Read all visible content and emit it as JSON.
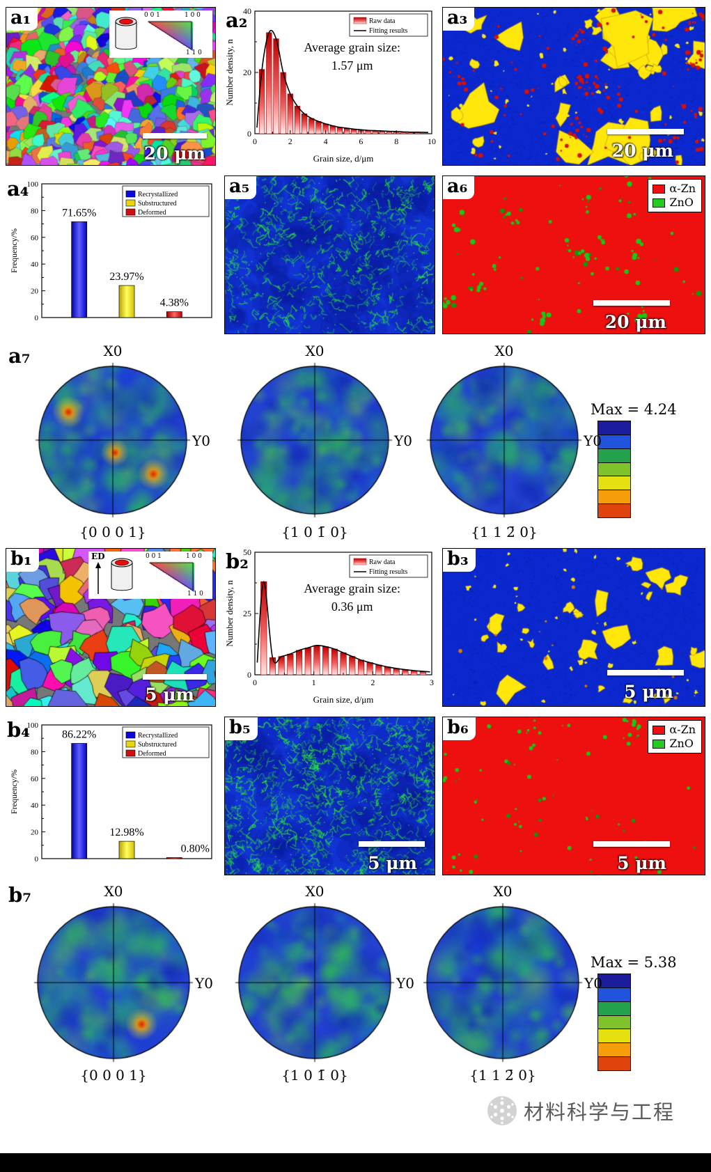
{
  "figure": {
    "watermark": "材料科学与工程"
  },
  "colorbar": {
    "colors": [
      "#1b1d9c",
      "#2153dc",
      "#23a14d",
      "#7fc22b",
      "#e5e00f",
      "#f59d0b",
      "#e0440e"
    ]
  },
  "panels": {
    "a1": {
      "label": "a₁",
      "scalebar": "20 μm",
      "key": {
        "c001": "0 0 1",
        "c100": "1 0 0",
        "c110": "1 1 0"
      }
    },
    "a2": {
      "label": "a₂"
    },
    "a3": {
      "label": "a₃",
      "scalebar": "20 μm"
    },
    "a4": {
      "label": "a₄"
    },
    "a5": {
      "label": "a₅"
    },
    "a6": {
      "label": "a₆",
      "scalebar": "20 μm",
      "legend": {
        "items": [
          {
            "label": "α-Zn",
            "color": "#ee1010"
          },
          {
            "label": "ZnO",
            "color": "#22cc22"
          }
        ]
      }
    },
    "a7": {
      "label": "a₇",
      "max": "Max = 4.24",
      "pf1": {
        "top": "X0",
        "right": "Y0",
        "bottom": "{0 0 0 1}"
      },
      "pf2": {
        "top": "X0",
        "right": "Y0",
        "bottom": "{1 0 1̄ 0}"
      },
      "pf3": {
        "top": "X0",
        "right": "Y0",
        "bottom": "{1 1 2̄ 0}"
      }
    },
    "b1": {
      "label": "b₁",
      "scalebar": "5 μm",
      "ed": "ED",
      "key": {
        "c001": "0 0 1",
        "c100": "1 0 0",
        "c110": "1 1 0"
      }
    },
    "b2": {
      "label": "b₂"
    },
    "b3": {
      "label": "b₃",
      "scalebar": "5 μm"
    },
    "b4": {
      "label": "b₄"
    },
    "b5": {
      "label": "b₅",
      "scalebar": "5 μm"
    },
    "b6": {
      "label": "b₆",
      "scalebar": "5 μm",
      "legend": {
        "items": [
          {
            "label": "α-Zn",
            "color": "#ee1010"
          },
          {
            "label": "ZnO",
            "color": "#22cc22"
          }
        ]
      }
    },
    "b7": {
      "label": "b₇",
      "max": "Max = 5.38",
      "pf1": {
        "top": "X0",
        "right": "Y0",
        "bottom": "{0 0 0 1}"
      },
      "pf2": {
        "top": "X0",
        "right": "Y0",
        "bottom": "{1 0 1̄ 0}"
      },
      "pf3": {
        "top": "X0",
        "right": "Y0",
        "bottom": "{1 1 2̄ 0}"
      }
    }
  },
  "chart_data": [
    {
      "id": "a2",
      "type": "bar",
      "title": "Average grain size:",
      "title2": "1.57 μm",
      "xlabel": "Grain size, d/μm",
      "ylabel": "Number density, n",
      "xlim": [
        0,
        10
      ],
      "ylim": [
        0,
        40
      ],
      "xticks": [
        0,
        2,
        4,
        6,
        8,
        10
      ],
      "yticks": [
        0,
        20,
        40
      ],
      "grid": false,
      "legend_position": "top-right",
      "legend": [
        "Raw data",
        "Fitting results"
      ],
      "bar_width": 0.3,
      "x": [
        0.4,
        0.8,
        1.2,
        1.6,
        2.0,
        2.4,
        2.8,
        3.2,
        3.6,
        4.0,
        4.4,
        4.8,
        5.2,
        5.6,
        6.0,
        6.4,
        6.8,
        7.2,
        7.6,
        8.0,
        8.4,
        8.8,
        9.2
      ],
      "values": [
        21,
        33,
        31,
        20,
        13,
        9,
        6.5,
        5,
        4,
        3.2,
        2.6,
        2.1,
        1.8,
        1.5,
        1.3,
        1.1,
        1.0,
        0.9,
        0.8,
        0.7,
        0.6,
        0.5,
        0.5
      ],
      "fit0": [
        0.12,
        2
      ],
      "fit1": [
        9.8,
        0.4
      ]
    },
    {
      "id": "b2",
      "type": "bar",
      "title": "Average grain size:",
      "title2": "0.36 μm",
      "xlabel": "Grain size, d/μm",
      "ylabel": "Number density, n",
      "xlim": [
        0,
        3
      ],
      "ylim": [
        0,
        50
      ],
      "xticks": [
        0,
        1,
        2,
        3
      ],
      "yticks": [
        0,
        25,
        50
      ],
      "grid": false,
      "legend_position": "top-right",
      "legend": [
        "Raw data",
        "Fitting results"
      ],
      "bar_width": 0.1,
      "x": [
        0.15,
        0.3,
        0.45,
        0.6,
        0.75,
        0.9,
        1.05,
        1.2,
        1.35,
        1.5,
        1.65,
        1.8,
        1.95,
        2.1,
        2.25,
        2.4,
        2.55,
        2.7,
        2.85
      ],
      "values": [
        38,
        7,
        7.5,
        8.5,
        10,
        11,
        12,
        11.5,
        10.5,
        9,
        7.5,
        6,
        5,
        4,
        3.2,
        2.6,
        2.1,
        1.7,
        1.4
      ],
      "fit0": [
        0.04,
        5
      ],
      "fit1": [
        2.97,
        1.2
      ]
    },
    {
      "id": "a4",
      "type": "bar",
      "categories": [
        "Recrystallized",
        "Substructured",
        "Deformed"
      ],
      "values": [
        71.65,
        23.97,
        4.38
      ],
      "labels": [
        "71.65%",
        "23.97%",
        "4.38%"
      ],
      "colors": [
        "#0a0adf",
        "#e8d40a",
        "#d01010"
      ],
      "ylabel": "Frequency/%",
      "ylim": [
        0,
        100
      ],
      "yticks": [
        0,
        20,
        40,
        60,
        80,
        100
      ],
      "grid": false,
      "legend_position": "top-right"
    },
    {
      "id": "b4",
      "type": "bar",
      "categories": [
        "Recrystallized",
        "Substructured",
        "Deformed"
      ],
      "values": [
        86.22,
        12.98,
        0.8
      ],
      "labels": [
        "86.22%",
        "12.98%",
        "0.80%"
      ],
      "colors": [
        "#0a0adf",
        "#e8d40a",
        "#d01010"
      ],
      "ylabel": "Frequency/%",
      "ylim": [
        0,
        100
      ],
      "yticks": [
        0,
        20,
        40,
        60,
        80,
        100
      ],
      "grid": false,
      "legend_position": "top-right"
    }
  ]
}
